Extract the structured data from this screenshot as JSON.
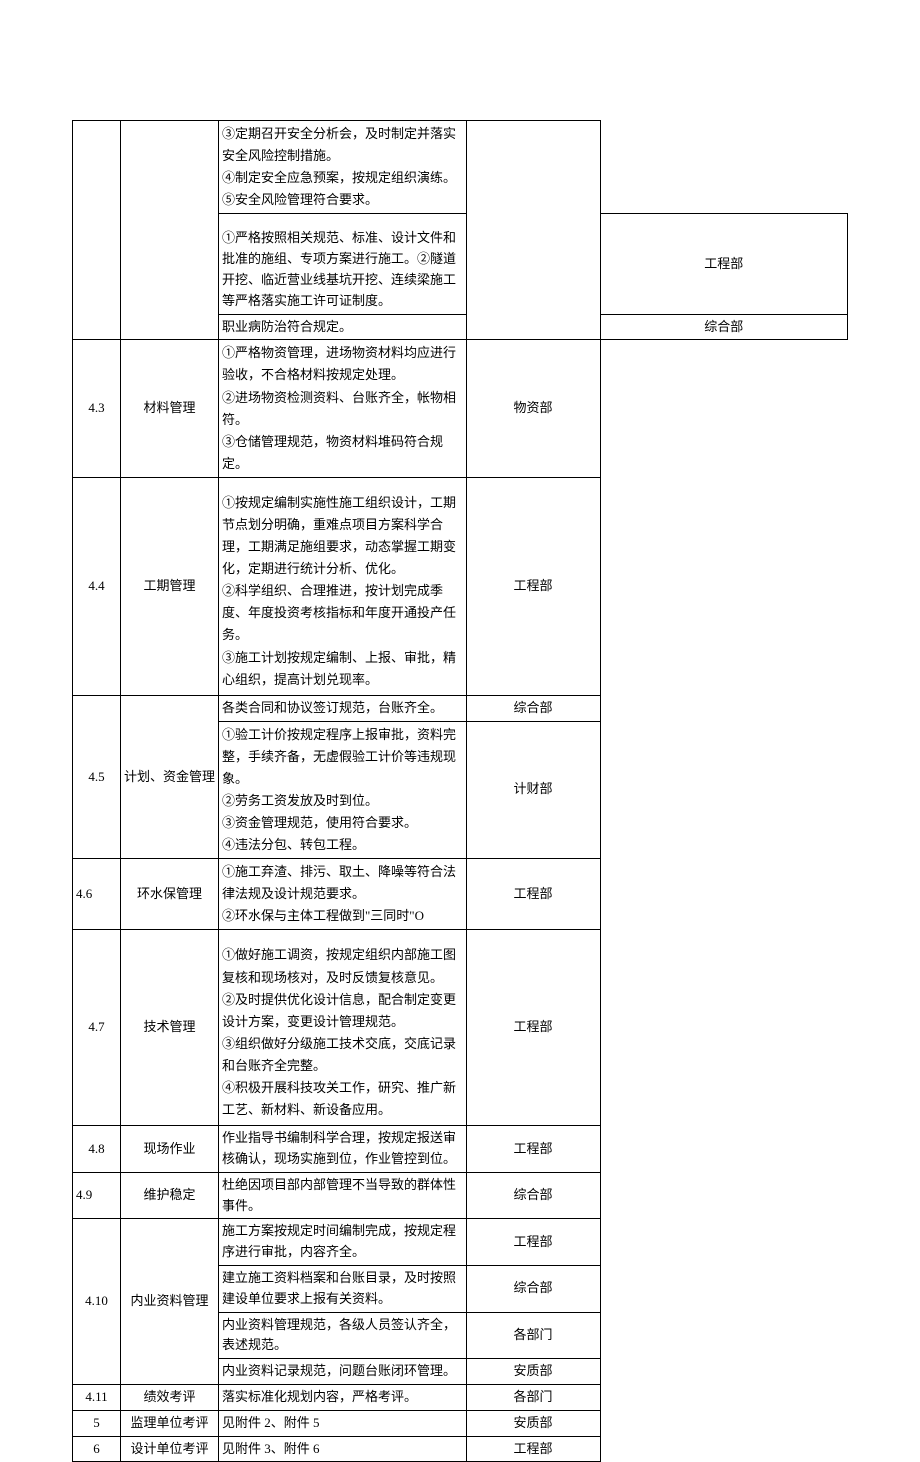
{
  "rows": [
    {
      "id": "",
      "cat": "",
      "desc": "③定期召开安全分析会，及时制定并落实安全风险控制措施。\n④制定安全应急预案，按规定组织演练。\n⑤安全风险管理符合要求。",
      "dept": "",
      "row_span_id": 3,
      "row_span_cat": 3,
      "row_span_dept": 3
    },
    {
      "desc": "①严格按照相关规范、标准、设计文件和批准的施组、专项方案进行施工。②隧道开挖、临近营业线基坑开挖、连续梁施工等严格落实施工许可证制度。",
      "dept": "工程部",
      "pad": true
    },
    {
      "desc": "职业病防治符合规定。",
      "dept": "综合部"
    },
    {
      "id": "4.3",
      "cat": "材料管理",
      "desc": "①严格物资管理，进场物资材料均应进行验收，不合格材料按规定处理。\n②进场物资检测资料、台账齐全，帐物相符。\n③仓储管理规范，物资材料堆码符合规定。",
      "dept": "物资部"
    },
    {
      "id": "4.4",
      "cat": "工期管理",
      "desc": "①按规定编制实施性施工组织设计，工期节点划分明确，重难点项目方案科学合理，工期满足施组要求，动态掌握工期变化，定期进行统计分析、优化。\n②科学组织、合理推进，按计划完成季度、年度投资考核指标和年度开通投产任务。\n③施工计划按规定编制、上报、审批，精心组织，提高计划兑现率。",
      "dept": "工程部",
      "pad": true
    },
    {
      "id": "4.5",
      "cat": "计划、资金管理",
      "row_span_id": 2,
      "row_span_cat": 2,
      "desc_a": "各类合同和协议签订规范，台账齐全。",
      "dept_a": "综合部",
      "desc_b": "①验工计价按规定程序上报审批，资料完整，手续齐备，无虚假验工计价等违规现象。\n②劳务工资发放及时到位。\n③资金管理规范，使用符合要求。\n④违法分包、转包工程。",
      "dept_b": "计财部",
      "split": true
    },
    {
      "id": "4.6",
      "cat": "环水保管理",
      "desc": "①施工弃渣、排污、取土、降噪等符合法律法规及设计规范要求。\n②环水保与主体工程做到\"三同时\"O",
      "dept": "工程部",
      "id_align": "left"
    },
    {
      "id": "4.7",
      "cat": "技术管理",
      "desc": "①做好施工调资，按规定组织内部施工图复核和现场核对，及时反馈复核意见。\n②及时提供优化设计信息，配合制定变更设计方案，变更设计管理规范。\n③组织做好分级施工技术交底，交底记录和台账齐全完整。\n④积极开展科技攻关工作，研究、推广新工艺、新材料、新设备应用。",
      "dept": "工程部",
      "pad": true
    },
    {
      "id": "4.8",
      "cat": "现场作业",
      "desc": "作业指导书编制科学合理，按规定报送审核确认，现场实施到位，作业管控到位。",
      "dept": "工程部"
    },
    {
      "id": "4.9",
      "cat": "维护稳定",
      "desc": "杜绝因项目部内部管理不当导致的群体性事件。",
      "dept": "综合部",
      "id_align": "left"
    },
    {
      "id": "4.10",
      "cat": "内业资料管理",
      "row_span_id": 4,
      "row_span_cat": 4,
      "multi_desc": [
        {
          "d": "施工方案按规定时间编制完成，按规定程序进行审批，内容齐全。",
          "p": "工程部"
        },
        {
          "d": "建立施工资料档案和台账目录，及时按照建设单位要求上报有关资料。",
          "p": "综合部"
        },
        {
          "d": "内业资料管理规范，各级人员签认齐全，表述规范。",
          "p": "各部门"
        },
        {
          "d": "内业资料记录规范，问题台账闭环管理。",
          "p": "安质部"
        }
      ]
    },
    {
      "id": "4.11",
      "cat": "绩效考评",
      "desc": "落实标准化规划内容，严格考评。",
      "dept": "各部门"
    },
    {
      "id": "5",
      "cat": "监理单位考评",
      "desc": "见附件 2、附件 5",
      "dept": "安质部"
    },
    {
      "id": "6",
      "cat": "设计单位考评",
      "desc": "见附件 3、附件 6",
      "dept": "工程部"
    }
  ]
}
